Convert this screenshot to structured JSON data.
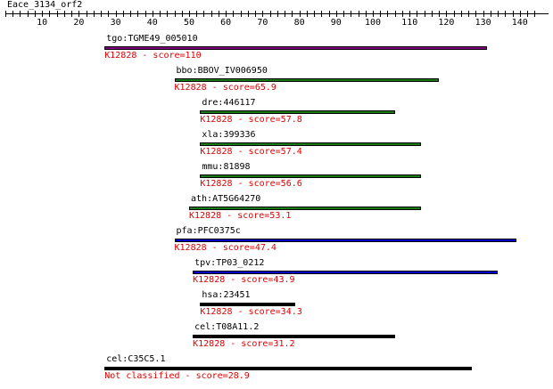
{
  "title": "Eace_3134_orf2",
  "ruler": {
    "min": 0,
    "max": 145,
    "labels": [
      10,
      20,
      30,
      40,
      50,
      60,
      70,
      80,
      90,
      100,
      110,
      120,
      130,
      140
    ]
  },
  "colors": {
    "label": "#000000",
    "score": "#e00000",
    "purple": "#800080",
    "green": "#1a7a1a",
    "blue": "#0000cc",
    "black": "#000000"
  },
  "hits": [
    {
      "name": "tgo:TGME49_005010",
      "score_text": "K12828 - score=110",
      "start": 27,
      "end": 131,
      "color": "purple"
    },
    {
      "name": "bbo:BBOV_IV006950",
      "score_text": "K12828 - score=65.9",
      "start": 46,
      "end": 118,
      "color": "green"
    },
    {
      "name": "dre:446117",
      "score_text": "K12828 - score=57.8",
      "start": 53,
      "end": 106,
      "color": "green"
    },
    {
      "name": "xla:399336",
      "score_text": "K12828 - score=57.4",
      "start": 53,
      "end": 113,
      "color": "green"
    },
    {
      "name": "mmu:81898",
      "score_text": "K12828 - score=56.6",
      "start": 53,
      "end": 113,
      "color": "green"
    },
    {
      "name": "ath:AT5G64270",
      "score_text": "K12828 - score=53.1",
      "start": 50,
      "end": 113,
      "color": "green"
    },
    {
      "name": "pfa:PFC0375c",
      "score_text": "K12828 - score=47.4",
      "start": 46,
      "end": 139,
      "color": "blue"
    },
    {
      "name": "tpv:TP03_0212",
      "score_text": "K12828 - score=43.9",
      "start": 51,
      "end": 134,
      "color": "blue"
    },
    {
      "name": "hsa:23451",
      "score_text": "K12828 - score=34.3",
      "start": 53,
      "end": 79,
      "color": "black"
    },
    {
      "name": "cel:T08A11.2",
      "score_text": "K12828 - score=31.2",
      "start": 51,
      "end": 106,
      "color": "black"
    },
    {
      "name": "cel:C35C5.1",
      "score_text": "Not classified - score=28.9",
      "start": 27,
      "end": 127,
      "color": "black"
    }
  ]
}
